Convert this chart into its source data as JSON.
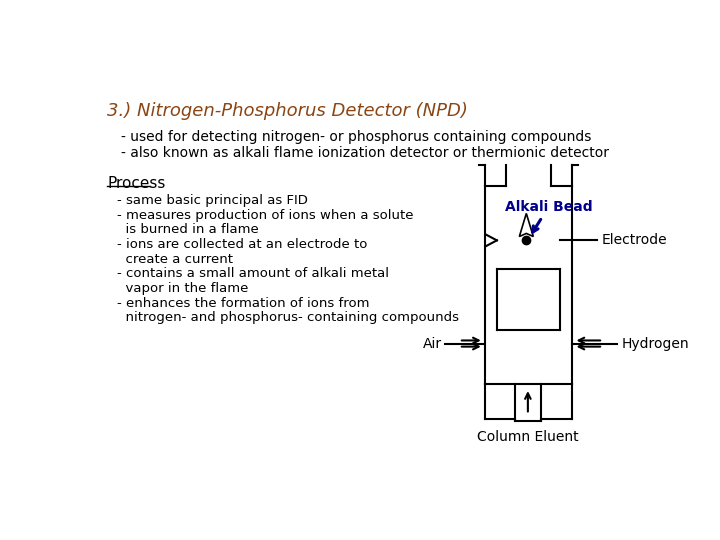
{
  "title": "3.) Nitrogen-Phosphorus Detector (NPD)",
  "title_color": "#8B4513",
  "bullet1": "- used for detecting nitrogen- or phosphorus containing compounds",
  "bullet2": "- also known as alkali flame ionization detector or thermionic detector",
  "process_label": "Process",
  "process_bullets": [
    "- same basic principal as FID",
    "- measures production of ions when a solute",
    "  is burned in a flame",
    "- ions are collected at an electrode to",
    "  create a current",
    "- contains a small amount of alkali metal",
    "  vapor in the flame",
    "- enhances the formation of ions from",
    "  nitrogen- and phosphorus- containing compounds"
  ],
  "label_alkali_bead": "Alkali Bead",
  "label_electrode": "Electrode",
  "label_air": "Air",
  "label_hydrogen": "Hydrogen",
  "label_column_eluent": "Column Eluent",
  "text_color": "#000000",
  "arrow_color": "#00008B",
  "diagram_line_color": "#000000",
  "bg_color": "#ffffff"
}
